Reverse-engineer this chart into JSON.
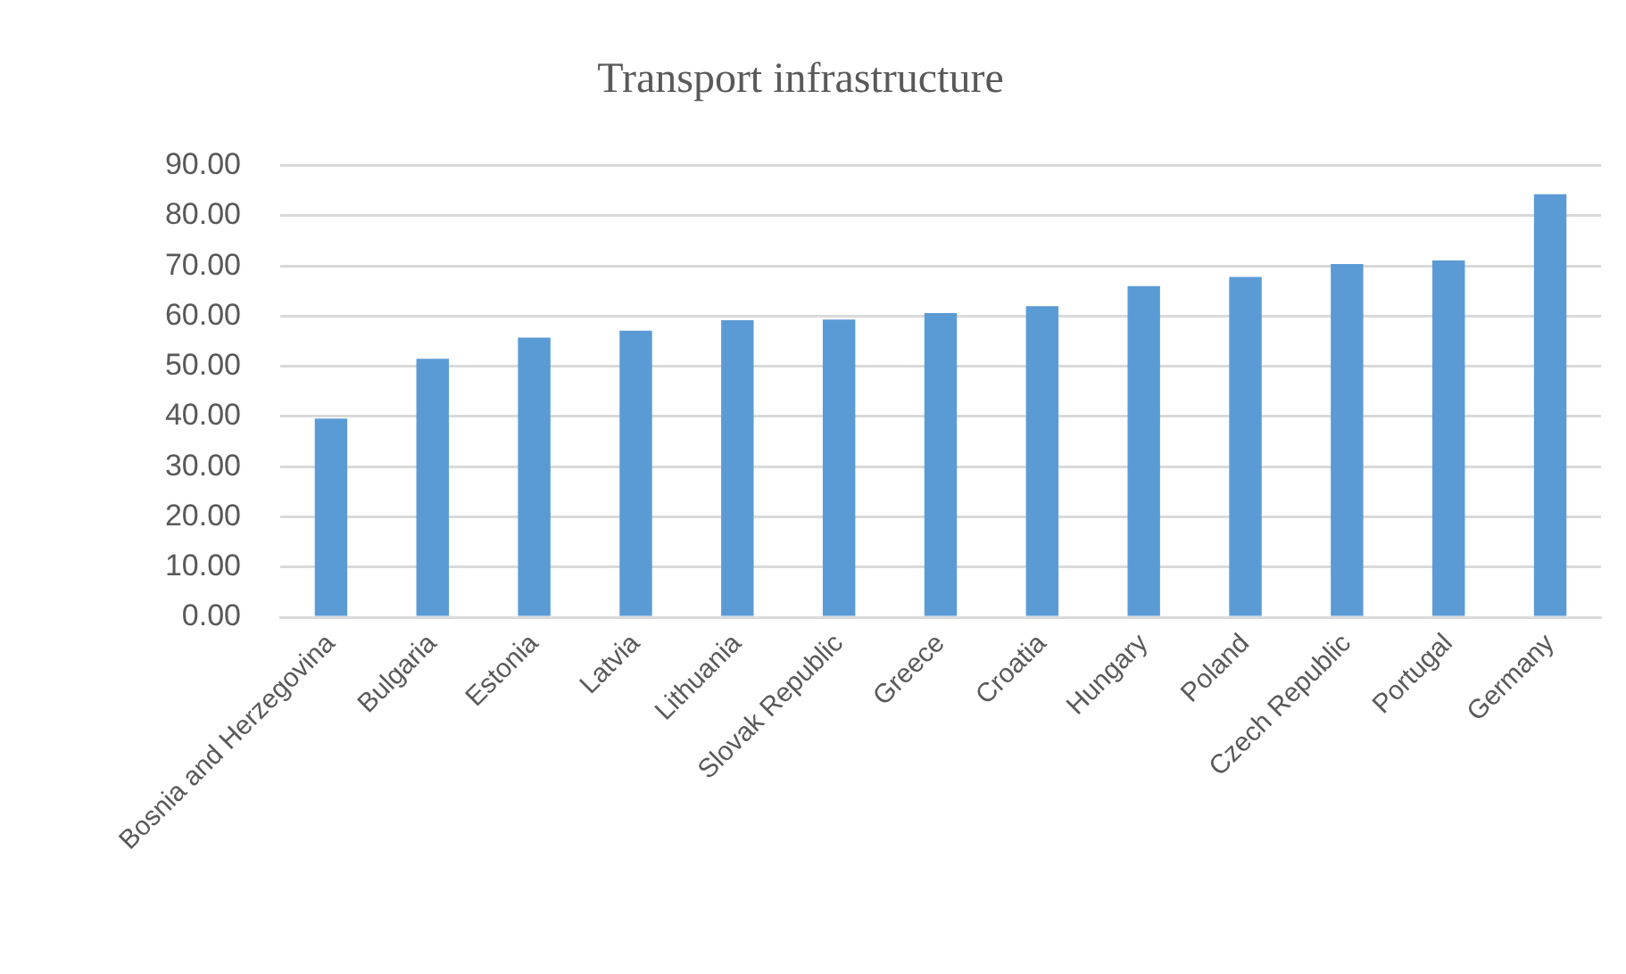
{
  "chart_data": {
    "type": "bar",
    "title": "Transport infrastructure",
    "categories": [
      "Bosnia and Herzegovina",
      "Bulgaria",
      "Estonia",
      "Latvia",
      "Lithuania",
      "Slovak Republic",
      "Greece",
      "Croatia",
      "Hungary",
      "Poland",
      "Czech Republic",
      "Portugal",
      "Germany"
    ],
    "values": [
      39.6,
      51.5,
      55.7,
      57.1,
      59.2,
      59.3,
      60.6,
      62.0,
      66.0,
      67.8,
      70.4,
      71.1,
      84.3
    ],
    "color": "#5b9bd5",
    "ylim": [
      0,
      90
    ],
    "yticks": [
      {
        "value": 0,
        "label": "0.00"
      },
      {
        "value": 10,
        "label": "10.00"
      },
      {
        "value": 20,
        "label": "20.00"
      },
      {
        "value": 30,
        "label": "30.00"
      },
      {
        "value": 40,
        "label": "40.00"
      },
      {
        "value": 50,
        "label": "50.00"
      },
      {
        "value": 60,
        "label": "60.00"
      },
      {
        "value": 70,
        "label": "70.00"
      },
      {
        "value": 80,
        "label": "80.00"
      },
      {
        "value": 90,
        "label": "90.00"
      }
    ],
    "grid": "y"
  }
}
